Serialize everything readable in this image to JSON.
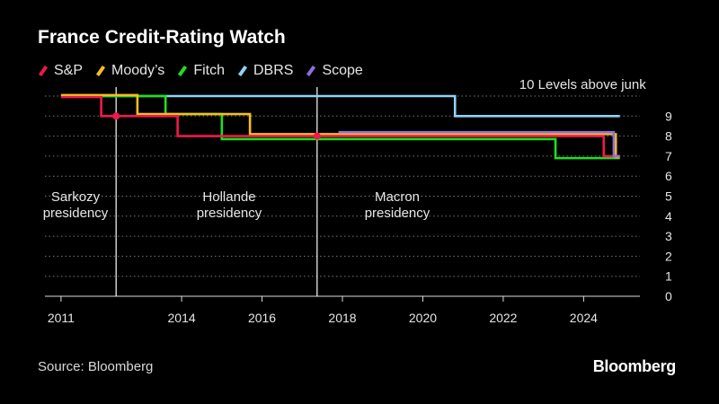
{
  "header": {
    "title": "France Credit-Rating Watch"
  },
  "footer": {
    "source": "Source: Bloomberg",
    "brand": "Bloomberg"
  },
  "legend": [
    {
      "name": "S&P",
      "color": "#f0194c"
    },
    {
      "name": "Moody’s",
      "color": "#f5bf1e"
    },
    {
      "name": "Fitch",
      "color": "#1ee01e"
    },
    {
      "name": "DBRS",
      "color": "#8fd3f5"
    },
    {
      "name": "Scope",
      "color": "#8f6fd9"
    }
  ],
  "chart_data": {
    "type": "line",
    "title": "France Credit-Rating Watch",
    "xlabel": "",
    "ylabel": "Levels above junk",
    "xlim": [
      2010.6,
      2025.4
    ],
    "ylim": [
      0,
      10
    ],
    "x_ticks": [
      2011,
      2014,
      2016,
      2018,
      2020,
      2022,
      2024
    ],
    "y_ticks": [
      0,
      1,
      2,
      3,
      4,
      5,
      6,
      7,
      8,
      9
    ],
    "grid": "horizontal dotted",
    "series": [
      {
        "name": "DBRS",
        "color": "#8fd3f5",
        "steps": [
          [
            2011.0,
            10
          ],
          [
            2020.8,
            9
          ],
          [
            2024.9,
            9
          ]
        ]
      },
      {
        "name": "Fitch",
        "color": "#1ee01e",
        "steps": [
          [
            2011.0,
            10
          ],
          [
            2013.6,
            9.1
          ],
          [
            2015.0,
            7.85
          ],
          [
            2023.3,
            6.9
          ],
          [
            2024.9,
            6.9
          ]
        ]
      },
      {
        "name": "Moody’s",
        "color": "#f5bf1e",
        "steps": [
          [
            2011.0,
            10.05
          ],
          [
            2012.9,
            9.1
          ],
          [
            2015.7,
            8.1
          ],
          [
            2024.8,
            6.95
          ],
          [
            2024.9,
            6.95
          ]
        ]
      },
      {
        "name": "S&P",
        "color": "#f0194c",
        "steps": [
          [
            2011.0,
            9.95
          ],
          [
            2012.0,
            9.0
          ],
          [
            2013.9,
            8.0
          ],
          [
            2024.5,
            7.0
          ],
          [
            2024.9,
            7.0
          ]
        ]
      },
      {
        "name": "Scope",
        "color": "#8f6fd9",
        "steps": [
          [
            2017.9,
            8.2
          ],
          [
            2024.75,
            7.0
          ],
          [
            2024.9,
            7.0
          ]
        ]
      }
    ],
    "events": [
      {
        "x": 2012.37,
        "y": 9.0
      },
      {
        "x": 2017.37,
        "y": 8.0
      }
    ],
    "annotations": [
      {
        "lines": [
          "Sarkozy",
          "presidency"
        ],
        "x": 2011.2,
        "y": 5.0
      },
      {
        "lines": [
          "Hollande",
          "presidency"
        ],
        "x": 2014.8,
        "y": 5.0
      },
      {
        "lines": [
          "Macron",
          "presidency"
        ],
        "x": 2019.3,
        "y": 5.0
      },
      {
        "lines": [
          "10 Levels above junk"
        ],
        "x": 2022.4,
        "y": 10.0
      }
    ]
  }
}
